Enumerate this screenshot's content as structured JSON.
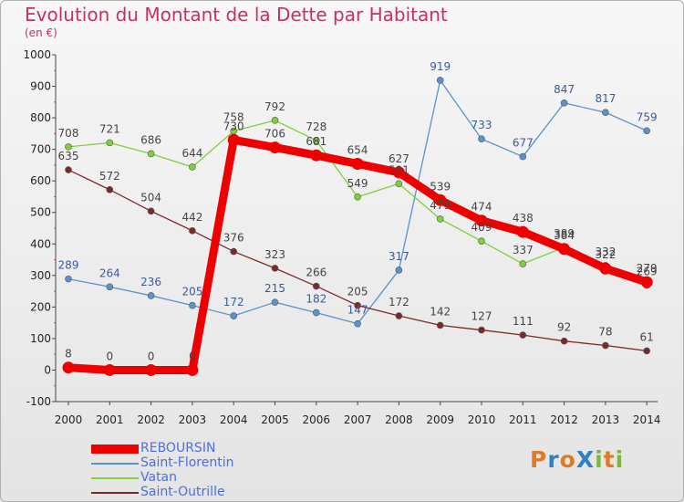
{
  "title": "Evolution du Montant de la Dette par Habitant",
  "unit": "(en €)",
  "logo": {
    "text": "ProXiti",
    "letters": [
      {
        "ch": "P",
        "color": "#e07b24"
      },
      {
        "ch": "r",
        "color": "#2f7fc1"
      },
      {
        "ch": "o",
        "color": "#e07b24"
      },
      {
        "ch": "X",
        "color": "#2f7fc1"
      },
      {
        "ch": "i",
        "color": "#7bb83a"
      },
      {
        "ch": "t",
        "color": "#e07b24"
      },
      {
        "ch": "i",
        "color": "#7bb83a"
      }
    ]
  },
  "chart_data": {
    "type": "line",
    "title": "Evolution du Montant de la Dette par Habitant",
    "ylabel": "(en €)",
    "xlabel": "",
    "x": [
      "2000",
      "2001",
      "2002",
      "2003",
      "2004",
      "2005",
      "2006",
      "2007",
      "2008",
      "2009",
      "2010",
      "2011",
      "2012",
      "2013",
      "2014"
    ],
    "ylim": [
      -100,
      1000
    ],
    "yticks": [
      -100,
      0,
      100,
      200,
      300,
      400,
      500,
      600,
      700,
      800,
      900,
      1000
    ],
    "grid": false,
    "legend": "bottom-left",
    "series": [
      {
        "name": "REBOURSIN",
        "color": "#ee0000",
        "values": [
          8,
          0,
          0,
          0,
          730,
          706,
          681,
          654,
          627,
          539,
          474,
          438,
          384,
          322,
          279
        ]
      },
      {
        "name": "Saint-Florentin",
        "color": "#5a93cc",
        "values": [
          289,
          264,
          236,
          205,
          172,
          215,
          182,
          147,
          317,
          919,
          733,
          677,
          847,
          817,
          759
        ]
      },
      {
        "name": "Vatan",
        "color": "#7fd13b",
        "values": [
          708,
          721,
          686,
          644,
          758,
          792,
          728,
          549,
          591,
          479,
          409,
          337,
          389,
          332,
          269
        ]
      },
      {
        "name": "Saint-Outrille",
        "color": "#7a2a2a",
        "values": [
          635,
          572,
          504,
          442,
          376,
          323,
          266,
          205,
          172,
          142,
          127,
          111,
          92,
          78,
          61
        ]
      }
    ]
  }
}
